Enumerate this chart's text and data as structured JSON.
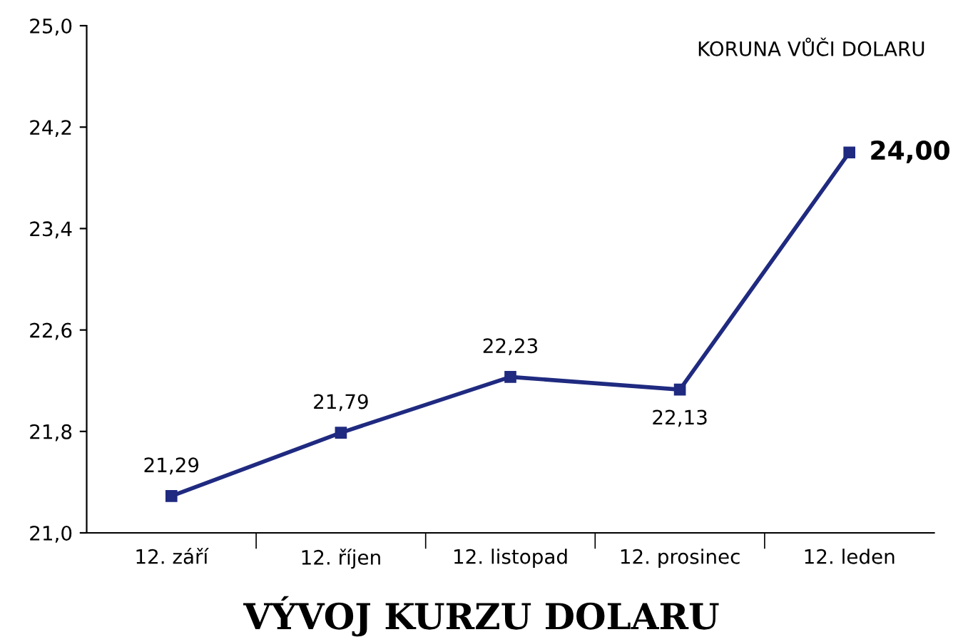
{
  "chart_data": {
    "type": "line",
    "title": "VÝVOJ KURZU DOLARU",
    "categories": [
      "12. září",
      "12. říjen",
      "12. listopad",
      "12. prosinec",
      "12. leden"
    ],
    "series": [
      {
        "color": "#1f2a80",
        "values": [
          21.29,
          21.79,
          22.23,
          22.13,
          24.0
        ],
        "value_labels": [
          "21,29",
          "21,79",
          "22,23",
          "22,13",
          "24,00"
        ]
      }
    ],
    "ylim": [
      21.0,
      25.0
    ],
    "yticks": [
      {
        "value": 21.0,
        "label": "21,0"
      },
      {
        "value": 21.8,
        "label": "21,8"
      },
      {
        "value": 22.6,
        "label": "22,6"
      },
      {
        "value": 23.4,
        "label": "23,4"
      },
      {
        "value": 24.2,
        "label": "24,2"
      },
      {
        "value": 25.0,
        "label": "25,0"
      }
    ],
    "annotations": [
      "KORUNA VŮČI DOLARU"
    ],
    "marker": "square",
    "line_style": "solid",
    "grid": false,
    "legend": false
  }
}
